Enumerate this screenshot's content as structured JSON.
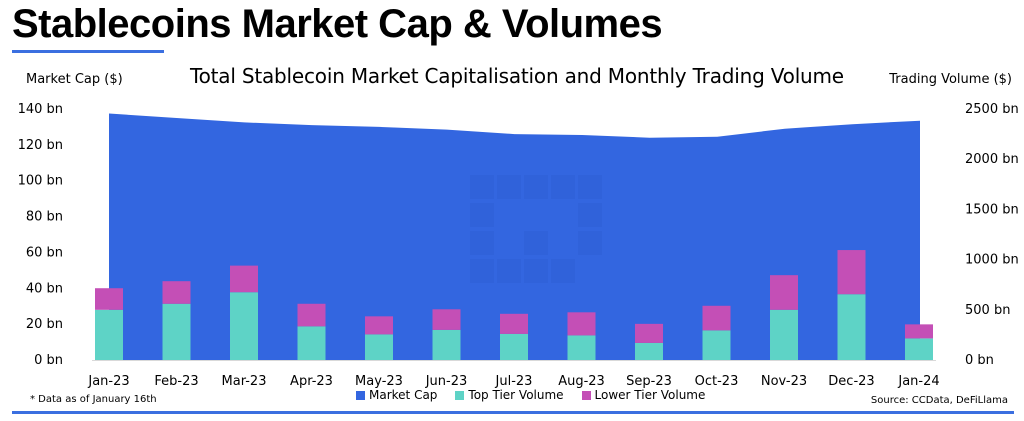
{
  "page": {
    "headline": "Stablecoins Market Cap & Volumes",
    "footnote": "* Data as of January 16th",
    "source": "Source: CCData, DeFiLlama",
    "accent_color": "#3b6fe0"
  },
  "chart_data": {
    "type": "bar",
    "title": "Total Stablecoin Market Capitalisation and Monthly Trading Volume",
    "ylabel": "Market Cap ($)",
    "y2label": "Trading Volume ($)",
    "categories": [
      "Jan-23",
      "Feb-23",
      "Mar-23",
      "Apr-23",
      "May-23",
      "Jun-23",
      "Jul-23",
      "Aug-23",
      "Sep-23",
      "Oct-23",
      "Nov-23",
      "Dec-23",
      "Jan-24"
    ],
    "ylim": [
      0,
      140
    ],
    "y2lim": [
      0,
      2500
    ],
    "y_ticks": [
      "0 bn",
      "20 bn",
      "40 bn",
      "60 bn",
      "80 bn",
      "100 bn",
      "120 bn",
      "140 bn"
    ],
    "y2_ticks": [
      "0 bn",
      "500 bn",
      "1000 bn",
      "1500 bn",
      "2000 bn",
      "2500 bn"
    ],
    "legend_position": "bottom",
    "grid": false,
    "series": [
      {
        "name": "Market Cap",
        "axis": "left",
        "chart": "area",
        "color": "#3366e0",
        "values": [
          137.5,
          135,
          132.5,
          131,
          130,
          128.5,
          126,
          125.5,
          124,
          124.5,
          129,
          131.5,
          133.5
        ]
      },
      {
        "name": "Top Tier Volume",
        "axis": "right",
        "chart": "stacked-bar",
        "color": "#5ed3c6",
        "values": [
          500,
          560,
          675,
          335,
          255,
          300,
          260,
          245,
          170,
          295,
          500,
          655,
          215
        ]
      },
      {
        "name": "Lower Tier Volume",
        "axis": "right",
        "chart": "stacked-bar",
        "color": "#c44fb6",
        "values": [
          215,
          225,
          265,
          225,
          180,
          205,
          200,
          230,
          190,
          245,
          345,
          440,
          140
        ]
      }
    ]
  }
}
